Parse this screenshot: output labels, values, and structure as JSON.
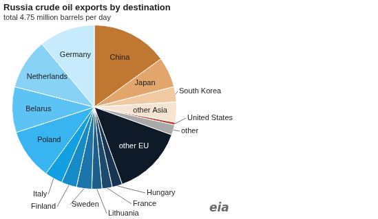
{
  "chart_data": {
    "type": "pie",
    "title": "Russia crude oil exports by destination",
    "subtitle": "total 4.75 million barrels per day",
    "categories": [
      "China",
      "Japan",
      "South Korea",
      "other Asia",
      "United States",
      "other",
      "other EU",
      "Hungary",
      "France",
      "Lithuania",
      "Sweden",
      "Finland",
      "Italy",
      "Poland",
      "Belarus",
      "Netherlands",
      "Germany"
    ],
    "values": [
      15,
      6,
      3,
      4,
      0.5,
      2,
      14,
      2,
      2,
      2,
      3,
      3,
      3.5,
      10,
      9,
      10,
      11
    ],
    "colors": [
      "#c07731",
      "#e2a66c",
      "#f0caa3",
      "#f6e4d2",
      "#c0392b",
      "#a9a9a9",
      "#0e1a28",
      "#183450",
      "#1c4a6f",
      "#1d5f8c",
      "#1b75aa",
      "#178bc8",
      "#12a0e2",
      "#38b4f1",
      "#5dc3f4",
      "#88d2f6",
      "#c7ebfc"
    ],
    "annotations": [
      "eia"
    ]
  }
}
